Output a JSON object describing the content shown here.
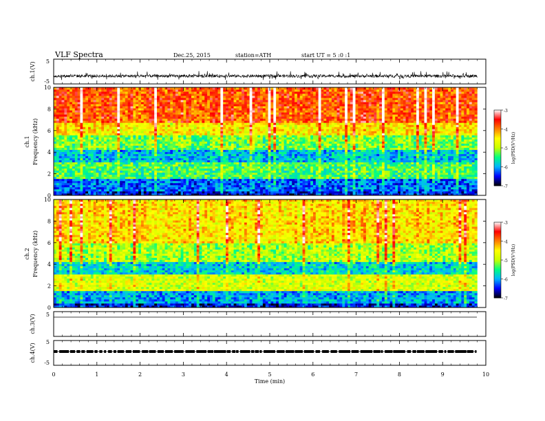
{
  "header": {
    "title": "VLF Spectra",
    "date": "Dec.25, 2015",
    "station": "station=ATH",
    "start": "start UT = 5 :0 :1"
  },
  "colors": {
    "axis": "#000000",
    "trace": "#000000",
    "colormap": [
      "#000000",
      "#0000ff",
      "#00b4ff",
      "#00ff80",
      "#c8ff00",
      "#ffff00",
      "#ff8000",
      "#ff0000",
      "#ffffff"
    ]
  },
  "chart_data": [
    {
      "id": "ch1_waveform",
      "type": "line",
      "ylabel": "ch.1(V)",
      "ylim": [
        -5,
        5
      ],
      "yticks": [
        "5",
        "-5"
      ],
      "xlim": [
        0,
        10
      ],
      "baseline": -1.8,
      "noise_range": [
        -3.5,
        0.2
      ],
      "x_extent": [
        0,
        9.8
      ]
    },
    {
      "id": "ch1_spectrogram",
      "type": "heatmap",
      "ylabel": "ch.1\nFrequency (kHz)",
      "ylim": [
        0,
        10
      ],
      "yticks": [
        "0",
        "2",
        "4",
        "6",
        "8",
        "10"
      ],
      "xlim": [
        0,
        10
      ],
      "x_extent": [
        0,
        9.8
      ],
      "colorbar": {
        "label": "log(PSD(V²/Hz)",
        "range": [
          -7,
          -3
        ],
        "ticks": [
          "-3",
          "-4",
          "-5",
          "-6",
          "-7"
        ]
      },
      "bands": [
        {
          "f": [
            0,
            0.3
          ],
          "level": -6.5
        },
        {
          "f": [
            0.3,
            1.5
          ],
          "level": -6.2
        },
        {
          "f": [
            1.5,
            3
          ],
          "level": -5.4
        },
        {
          "f": [
            3,
            4.2
          ],
          "level": -5.9
        },
        {
          "f": [
            4.2,
            5.5
          ],
          "level": -5.2
        },
        {
          "f": [
            5.5,
            6.8
          ],
          "level": -4.5
        },
        {
          "f": [
            6.8,
            10
          ],
          "level": -3.8
        }
      ]
    },
    {
      "id": "ch2_spectrogram",
      "type": "heatmap",
      "ylabel": "ch.2\nFrequency (kHz)",
      "ylim": [
        0,
        10
      ],
      "yticks": [
        "0",
        "2",
        "4",
        "6",
        "8",
        "10"
      ],
      "xlim": [
        0,
        10
      ],
      "x_extent": [
        0,
        9.8
      ],
      "colorbar": {
        "label": "log(PSD(V²/Hz)",
        "range": [
          -7,
          -3
        ],
        "ticks": [
          "-3",
          "-4",
          "-5",
          "-6",
          "-7"
        ]
      },
      "bands": [
        {
          "f": [
            0,
            0.3
          ],
          "level": -6.5
        },
        {
          "f": [
            0.3,
            1.5
          ],
          "level": -6.0
        },
        {
          "f": [
            1.5,
            3
          ],
          "level": -4.8
        },
        {
          "f": [
            3,
            4.2
          ],
          "level": -5.8
        },
        {
          "f": [
            4.2,
            6
          ],
          "level": -5.0
        },
        {
          "f": [
            6,
            10
          ],
          "level": -4.4
        }
      ]
    },
    {
      "id": "ch3_waveform",
      "type": "line",
      "ylabel": "ch.3(V)",
      "ylim": [
        -5,
        5
      ],
      "yticks": [
        "5"
      ],
      "xlim": [
        0,
        10
      ],
      "baseline": 0,
      "x_extent": [
        0,
        9.8
      ]
    },
    {
      "id": "ch4_waveform",
      "type": "line",
      "ylabel": "ch.4(V)",
      "ylim": [
        -5,
        5
      ],
      "yticks": [
        "5",
        "-5"
      ],
      "xlim": [
        0,
        10
      ],
      "baseline": 0,
      "x_extent": [
        0,
        9.8
      ]
    }
  ],
  "xaxis": {
    "label": "Time (min)",
    "ticks": [
      "0",
      "1",
      "2",
      "3",
      "4",
      "5",
      "6",
      "7",
      "8",
      "9",
      "10"
    ]
  }
}
